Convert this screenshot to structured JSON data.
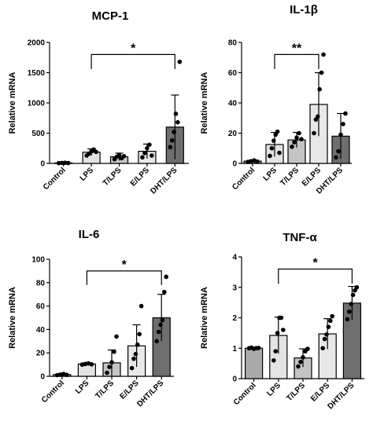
{
  "colors": {
    "axis": "#000000",
    "dots": "#000000",
    "bar_fills": [
      "#a9a9a9",
      "#e3e3e3",
      "#c4c4c4",
      "#e8e8e8",
      "#6e6e6e"
    ]
  },
  "chart_data": [
    {
      "type": "bar",
      "title": "MCP-1",
      "ylabel": "Relative mRNA",
      "categories": [
        "Control",
        "LPS",
        "T/LPS",
        "E/LPS",
        "DHT/LPS"
      ],
      "values": [
        8,
        185,
        110,
        200,
        600
      ],
      "errors": [
        8,
        55,
        60,
        120,
        530
      ],
      "points": [
        [
          5,
          8,
          10,
          6
        ],
        [
          130,
          160,
          200,
          230,
          190
        ],
        [
          70,
          110,
          140,
          85,
          120
        ],
        [
          100,
          170,
          250,
          310,
          130
        ],
        [
          270,
          380,
          520,
          820,
          680,
          1680
        ]
      ],
      "ylim": [
        0,
        2000
      ],
      "yticks": [
        "0",
        "500",
        "1000",
        "1500",
        "2000"
      ],
      "significance": {
        "from": "LPS",
        "to": "DHT/LPS",
        "label": "*"
      }
    },
    {
      "type": "bar",
      "title": "IL-1β",
      "ylabel": "Relative mRNA",
      "categories": [
        "Control",
        "LPS",
        "T/LPS",
        "E/LPS",
        "DHT/LPS"
      ],
      "values": [
        1.5,
        12.5,
        15.5,
        39,
        18
      ],
      "errors": [
        0.6,
        8,
        5,
        21,
        15
      ],
      "points": [
        [
          1,
          1.5,
          2,
          1.2
        ],
        [
          5,
          10,
          15,
          19,
          21,
          7
        ],
        [
          11,
          14,
          17,
          20,
          16
        ],
        [
          20,
          29,
          31,
          49,
          60,
          72
        ],
        [
          4,
          8,
          19,
          26,
          33
        ]
      ],
      "ylim": [
        0,
        80
      ],
      "yticks": [
        "0",
        "20",
        "40",
        "60",
        "80"
      ],
      "significance": {
        "from": "LPS",
        "to": "E/LPS",
        "label": "**"
      }
    },
    {
      "type": "bar",
      "title": "IL-6",
      "ylabel": "Relative mRNA",
      "categories": [
        "Control",
        "LPS",
        "T/LPS",
        "E/LPS",
        "DHT/LPS"
      ],
      "values": [
        1.5,
        10.5,
        11.5,
        26,
        50
      ],
      "errors": [
        0.5,
        1,
        11,
        18,
        20
      ],
      "points": [
        [
          1,
          1.5,
          2,
          1.2
        ],
        [
          10,
          10.5,
          11,
          10.2
        ],
        [
          3,
          8,
          12,
          21,
          34
        ],
        [
          7,
          15,
          19,
          27,
          36,
          60
        ],
        [
          30,
          38,
          44,
          48,
          72,
          85
        ]
      ],
      "ylim": [
        0,
        100
      ],
      "yticks": [
        "0",
        "20",
        "40",
        "60",
        "80",
        "100"
      ],
      "significance": {
        "from": "LPS",
        "to": "DHT/LPS",
        "label": "*"
      }
    },
    {
      "type": "bar",
      "title": "TNF-α",
      "ylabel": "Relative mRNA",
      "categories": [
        "Control",
        "LPS",
        "T/LPS",
        "E/LPS",
        "DHT/LPS"
      ],
      "values": [
        1.0,
        1.42,
        0.68,
        1.47,
        2.48
      ],
      "errors": [
        0.02,
        0.6,
        0.3,
        0.5,
        0.55
      ],
      "points": [
        [
          1.0,
          1.02,
          0.98,
          1.0,
          1.01
        ],
        [
          0.6,
          0.9,
          1.5,
          2.0,
          2.0,
          1.6
        ],
        [
          0.4,
          0.55,
          0.7,
          0.9,
          0.98
        ],
        [
          1.0,
          1.3,
          1.45,
          1.7,
          1.9,
          2.05
        ],
        [
          1.95,
          2.2,
          2.45,
          2.75,
          2.9,
          3.0
        ]
      ],
      "ylim": [
        0,
        4
      ],
      "yticks": [
        "0",
        "1",
        "2",
        "3",
        "4"
      ],
      "significance": {
        "from": "LPS",
        "to": "DHT/LPS",
        "label": "*"
      }
    }
  ]
}
